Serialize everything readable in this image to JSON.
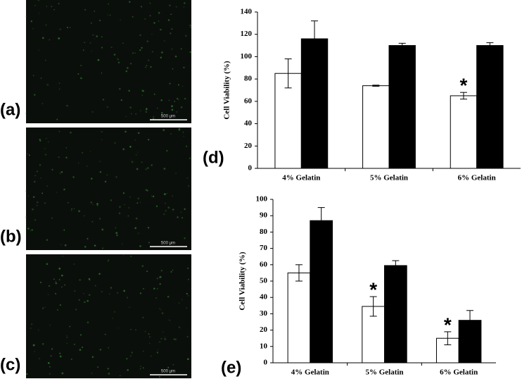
{
  "images": [
    {
      "label": "(a)",
      "scale_bar": "500 μm"
    },
    {
      "label": "(b)",
      "scale_bar": "500 μm"
    },
    {
      "label": "(c)",
      "scale_bar": "500 μm"
    }
  ],
  "chart_data": [
    {
      "type": "bar",
      "panel_label": "(d)",
      "y_label": "Cell Viability  (%)",
      "categories": [
        "4% Gelatin",
        "5% Gelatin",
        "6% Gelatin"
      ],
      "series": [
        {
          "color": "#ffffff",
          "values": [
            85,
            74,
            65
          ],
          "errors": [
            13,
            0.5,
            3
          ],
          "significance": [
            null,
            null,
            "*"
          ]
        },
        {
          "color": "#000000",
          "values": [
            116,
            110,
            110
          ],
          "errors": [
            16,
            2,
            2.5
          ]
        }
      ],
      "ylim": [
        0,
        140
      ],
      "yticks": [
        0,
        20,
        40,
        60,
        80,
        100,
        120,
        140
      ]
    },
    {
      "type": "bar",
      "panel_label": "(e)",
      "y_label": "Cell Viability  (%)",
      "categories": [
        "4% Gelatin",
        "5% Gelatin",
        "6% Gelatin"
      ],
      "series": [
        {
          "color": "#ffffff",
          "values": [
            55,
            34.5,
            15
          ],
          "errors": [
            5,
            6,
            4
          ],
          "significance": [
            null,
            "*",
            "*"
          ]
        },
        {
          "color": "#000000",
          "values": [
            87,
            59.5,
            26
          ],
          "errors": [
            8,
            3,
            6
          ]
        }
      ],
      "ylim": [
        0,
        100
      ],
      "yticks": [
        0,
        10,
        20,
        30,
        40,
        50,
        60,
        70,
        80,
        90,
        100
      ]
    }
  ]
}
